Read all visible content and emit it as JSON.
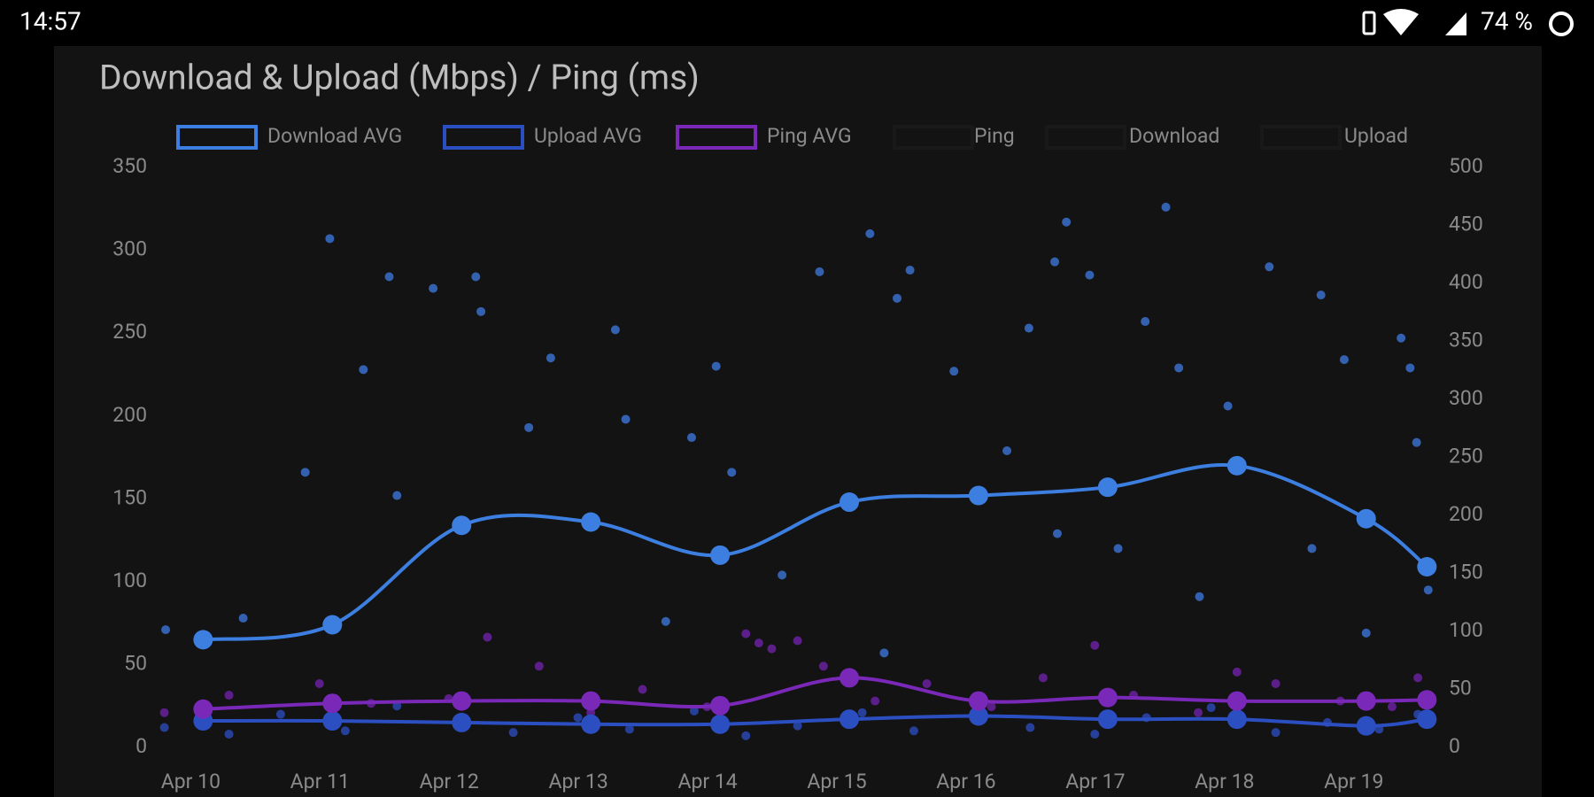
{
  "status_bar": {
    "time": "14:57",
    "battery": "74 %"
  },
  "chart_data": {
    "type": "line",
    "title": "Download & Upload (Mbps) / Ping (ms)",
    "xlim": [
      9.6,
      19.55
    ],
    "xticks": [
      {
        "value": 10,
        "label": "Apr 10"
      },
      {
        "value": 11,
        "label": "Apr 11"
      },
      {
        "value": 12,
        "label": "Apr 12"
      },
      {
        "value": 13,
        "label": "Apr 13"
      },
      {
        "value": 14,
        "label": "Apr 14"
      },
      {
        "value": 15,
        "label": "Apr 15"
      },
      {
        "value": 16,
        "label": "Apr 16"
      },
      {
        "value": 17,
        "label": "Apr 17"
      },
      {
        "value": 18,
        "label": "Apr 18"
      },
      {
        "value": 19,
        "label": "Apr 19"
      }
    ],
    "ylim": [
      0,
      350
    ],
    "yticks": [
      0,
      50,
      100,
      150,
      200,
      250,
      300,
      350
    ],
    "y2lim": [
      0,
      500
    ],
    "y2ticks": [
      0,
      50,
      100,
      150,
      200,
      250,
      300,
      350,
      400,
      450,
      500
    ],
    "series": [
      {
        "name": "Download AVG",
        "type": "line",
        "color": "#3d7fe0",
        "axis": "y",
        "x": [
          10,
          11,
          12,
          13,
          14,
          15,
          16,
          17,
          18,
          19,
          19.47
        ],
        "values": [
          65,
          74,
          134,
          136,
          116,
          148,
          152,
          157,
          170,
          138,
          109
        ]
      },
      {
        "name": "Upload AVG",
        "type": "line",
        "color": "#2b4fc0",
        "axis": "y",
        "x": [
          10,
          11,
          12,
          13,
          14,
          15,
          16,
          17,
          18,
          19,
          19.47
        ],
        "values": [
          16,
          16,
          15,
          14,
          14,
          17,
          19,
          17,
          17,
          13,
          17
        ]
      },
      {
        "name": "Ping AVG",
        "type": "line",
        "color": "#7a28b8",
        "axis": "y2",
        "x": [
          10,
          11,
          12,
          13,
          14,
          15,
          16,
          17,
          18,
          19,
          19.47
        ],
        "values": [
          33,
          38,
          40,
          40,
          36,
          60,
          40,
          43,
          40,
          40,
          41
        ]
      },
      {
        "name": "Ping",
        "type": "scatter",
        "color": "#6a22a0",
        "axis": "y2",
        "x": [
          9.7,
          10.2,
          10.9,
          11.3,
          11.9,
          12.2,
          12.6,
          13.0,
          13.4,
          13.9,
          14.2,
          14.3,
          14.4,
          14.6,
          14.8,
          15.2,
          15.6,
          16.1,
          16.5,
          16.9,
          17.2,
          17.7,
          18.0,
          18.3,
          18.8,
          19.2,
          19.4
        ],
        "values": [
          30,
          45,
          55,
          38,
          42,
          95,
          70,
          30,
          50,
          35,
          98,
          90,
          85,
          92,
          70,
          40,
          55,
          35,
          60,
          88,
          45,
          30,
          65,
          55,
          40,
          35,
          60
        ]
      },
      {
        "name": "Download",
        "type": "scatter",
        "color": "#3a70cc",
        "axis": "y",
        "x": [
          10.98,
          11.44,
          11.24,
          11.78,
          12.11,
          12.15,
          12.69,
          13.19,
          13.27,
          13.97,
          14.77,
          15.16,
          15.47,
          15.37,
          15.81,
          16.39,
          16.68,
          16.59,
          16.86,
          17.29,
          17.45,
          17.55,
          17.93,
          18.25,
          18.65,
          18.83,
          19.27,
          19.34,
          19.39,
          9.71,
          10.31,
          10.79,
          11.5,
          12.52,
          13.78,
          14.09,
          16.22,
          16.61,
          17.08,
          17.71,
          18.58,
          19.0,
          19.48,
          13.58,
          15.27,
          14.48
        ],
        "values": [
          307,
          284,
          228,
          277,
          284,
          263,
          235,
          252,
          198,
          230,
          287,
          310,
          288,
          271,
          227,
          253,
          317,
          293,
          285,
          257,
          326,
          229,
          206,
          290,
          273,
          234,
          247,
          229,
          184,
          71,
          78,
          166,
          152,
          193,
          187,
          166,
          179,
          129,
          120,
          91,
          120,
          69,
          95,
          76,
          57,
          104
        ]
      },
      {
        "name": "Upload",
        "type": "scatter",
        "color": "#2a48b0",
        "axis": "y",
        "x": [
          9.7,
          10.2,
          10.6,
          11.1,
          11.5,
          12.0,
          12.4,
          12.9,
          13.3,
          13.8,
          14.2,
          14.6,
          15.1,
          15.5,
          16.0,
          16.4,
          16.9,
          17.3,
          17.8,
          18.3,
          18.7,
          19.1,
          19.4
        ],
        "values": [
          12,
          8,
          20,
          10,
          25,
          14,
          9,
          18,
          11,
          22,
          7,
          13,
          21,
          10,
          30,
          12,
          8,
          18,
          24,
          9,
          15,
          11,
          20
        ]
      }
    ]
  }
}
